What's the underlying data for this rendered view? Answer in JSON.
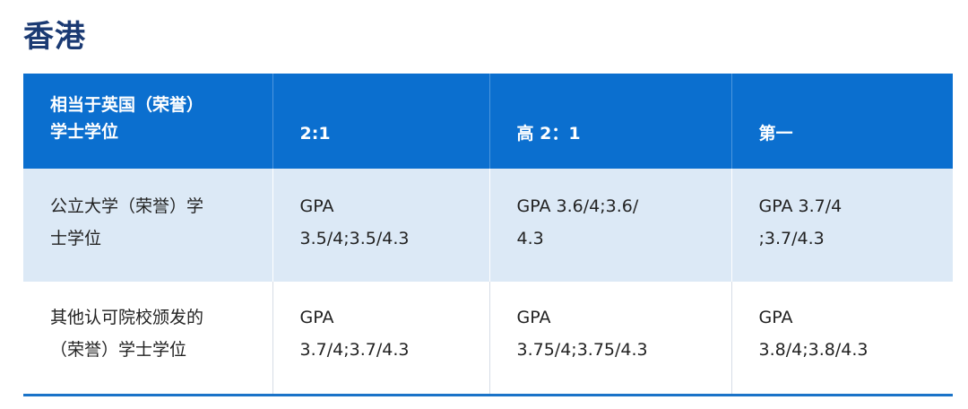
{
  "section_title": "香港",
  "table": {
    "headers": [
      "相当于英国（荣誉）\n学士学位",
      "2:1",
      "高 2：1",
      "第一"
    ],
    "rows": [
      {
        "label": "公立大学（荣誉）学\n士学位",
        "cells": [
          "GPA\n3.5/4;3.5/4.3",
          "GPA 3.6/4;3.6/\n4.3",
          "GPA 3.7/4\n;3.7/4.3"
        ]
      },
      {
        "label": "其他认可院校颁发的\n（荣誉）学士学位",
        "cells": [
          "GPA\n3.7/4;3.7/4.3",
          "GPA\n3.75/4;3.75/4.3",
          "GPA\n3.8/4;3.8/4.3"
        ]
      }
    ]
  },
  "colors": {
    "header_bg": "#0b6fcf",
    "row_alt_bg": "#dce9f6",
    "title": "#1b3a73",
    "rule": "#1a73c8"
  }
}
